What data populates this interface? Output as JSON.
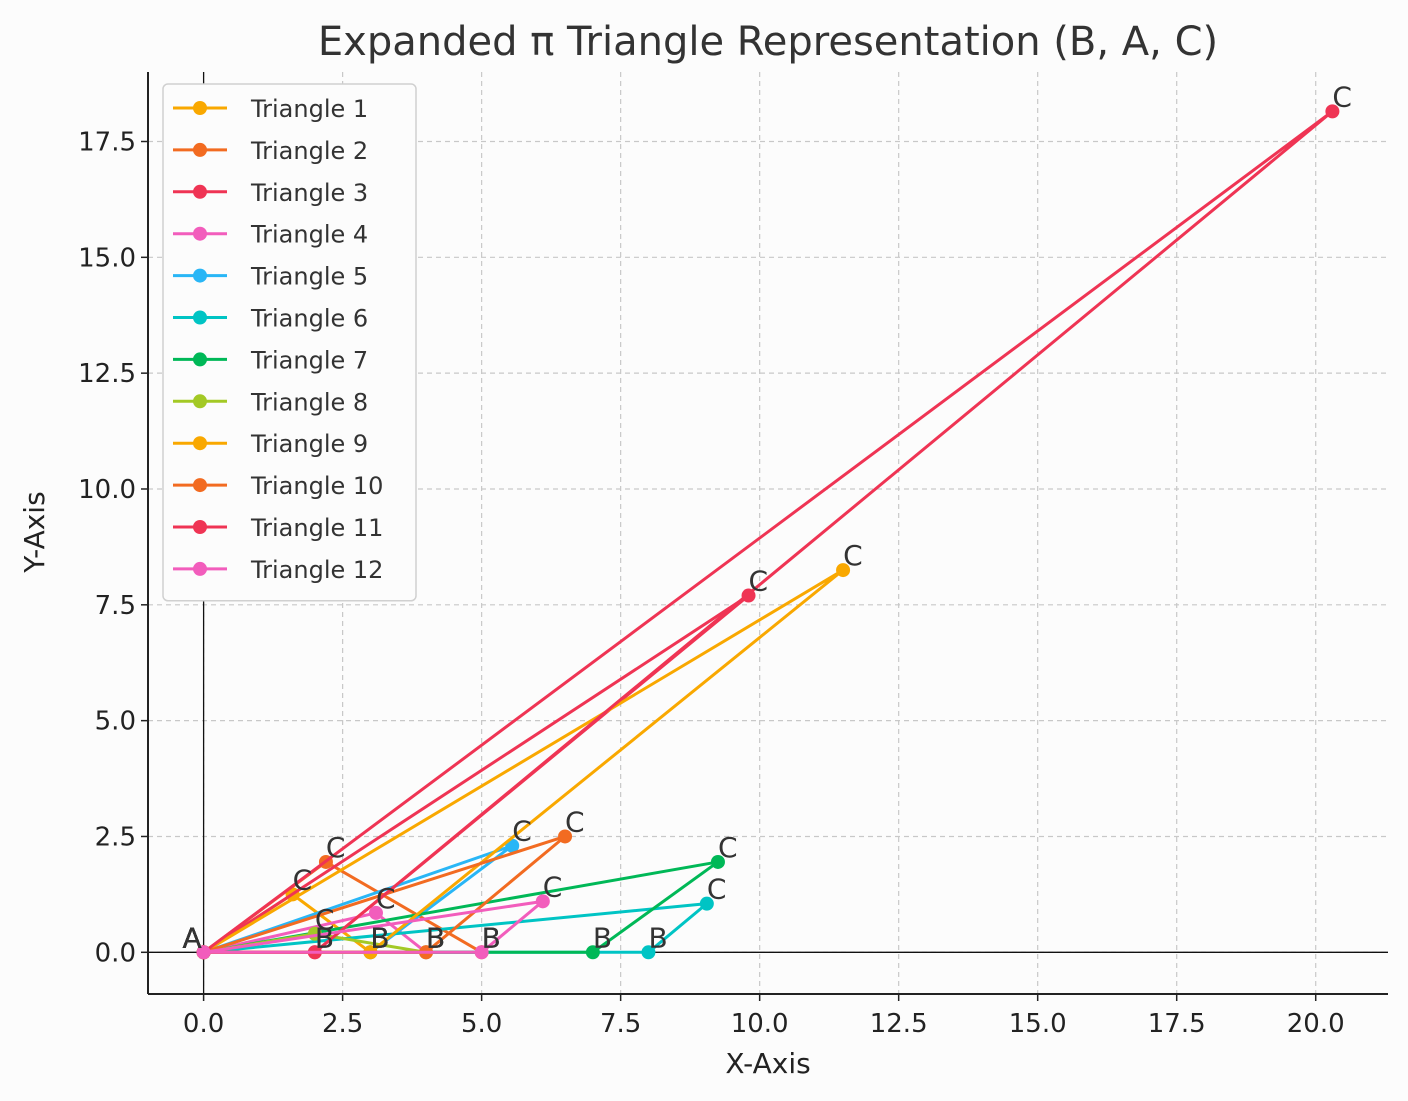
{
  "chart_data": {
    "type": "line",
    "title": "Expanded π Triangle Representation (B, A, C)",
    "xlabel": "X-Axis",
    "ylabel": "Y-Axis",
    "xlim": [
      -1.0,
      21.3
    ],
    "ylim": [
      -0.9,
      19.0
    ],
    "xticks": [
      0.0,
      2.5,
      5.0,
      7.5,
      10.0,
      12.5,
      15.0,
      17.5,
      20.0
    ],
    "xtick_labels": [
      "0.0",
      "2.5",
      "5.0",
      "7.5",
      "10.0",
      "12.5",
      "15.0",
      "17.5",
      "20.0"
    ],
    "yticks": [
      0.0,
      2.5,
      5.0,
      7.5,
      10.0,
      12.5,
      15.0,
      17.5
    ],
    "ytick_labels": [
      "0.0",
      "2.5",
      "5.0",
      "7.5",
      "10.0",
      "12.5",
      "15.0",
      "17.5"
    ],
    "grid": true,
    "legend_position": "top-left",
    "point_labels": [
      "B",
      "A",
      "C"
    ],
    "series": [
      {
        "name": "Triangle 1",
        "color": "#f9a800",
        "points": [
          [
            3.0,
            0.0
          ],
          [
            0.0,
            0.0
          ],
          [
            1.6,
            1.25
          ]
        ]
      },
      {
        "name": "Triangle 2",
        "color": "#f26b21",
        "points": [
          [
            5.0,
            0.0
          ],
          [
            0.0,
            0.0
          ],
          [
            2.2,
            1.95
          ]
        ]
      },
      {
        "name": "Triangle 3",
        "color": "#ef3454",
        "points": [
          [
            2.0,
            0.0
          ],
          [
            0.0,
            0.0
          ],
          [
            9.8,
            7.7
          ]
        ]
      },
      {
        "name": "Triangle 4",
        "color": "#f25dbc",
        "points": [
          [
            4.0,
            0.0
          ],
          [
            0.0,
            0.0
          ],
          [
            3.1,
            0.85
          ]
        ]
      },
      {
        "name": "Triangle 5",
        "color": "#29b6f6",
        "points": [
          [
            3.0,
            0.0
          ],
          [
            0.0,
            0.0
          ],
          [
            5.55,
            2.3
          ]
        ]
      },
      {
        "name": "Triangle 6",
        "color": "#00c4c4",
        "points": [
          [
            8.0,
            0.0
          ],
          [
            0.0,
            0.0
          ],
          [
            9.05,
            1.05
          ]
        ]
      },
      {
        "name": "Triangle 7",
        "color": "#00b857",
        "points": [
          [
            7.0,
            0.0
          ],
          [
            0.0,
            0.0
          ],
          [
            9.25,
            1.95
          ]
        ]
      },
      {
        "name": "Triangle 8",
        "color": "#a3c925",
        "points": [
          [
            4.0,
            0.0
          ],
          [
            0.0,
            0.0
          ],
          [
            2.0,
            0.4
          ]
        ]
      },
      {
        "name": "Triangle 9",
        "color": "#f9a800",
        "points": [
          [
            3.0,
            0.0
          ],
          [
            0.0,
            0.0
          ],
          [
            11.5,
            8.25
          ]
        ]
      },
      {
        "name": "Triangle 10",
        "color": "#f26b21",
        "points": [
          [
            4.0,
            0.0
          ],
          [
            0.0,
            0.0
          ],
          [
            6.5,
            2.5
          ]
        ]
      },
      {
        "name": "Triangle 11",
        "color": "#ef3454",
        "points": [
          [
            2.0,
            0.0
          ],
          [
            0.0,
            0.0
          ],
          [
            20.3,
            18.15
          ]
        ]
      },
      {
        "name": "Triangle 12",
        "color": "#f25dbc",
        "points": [
          [
            5.0,
            0.0
          ],
          [
            0.0,
            0.0
          ],
          [
            6.1,
            1.1
          ]
        ]
      }
    ]
  }
}
